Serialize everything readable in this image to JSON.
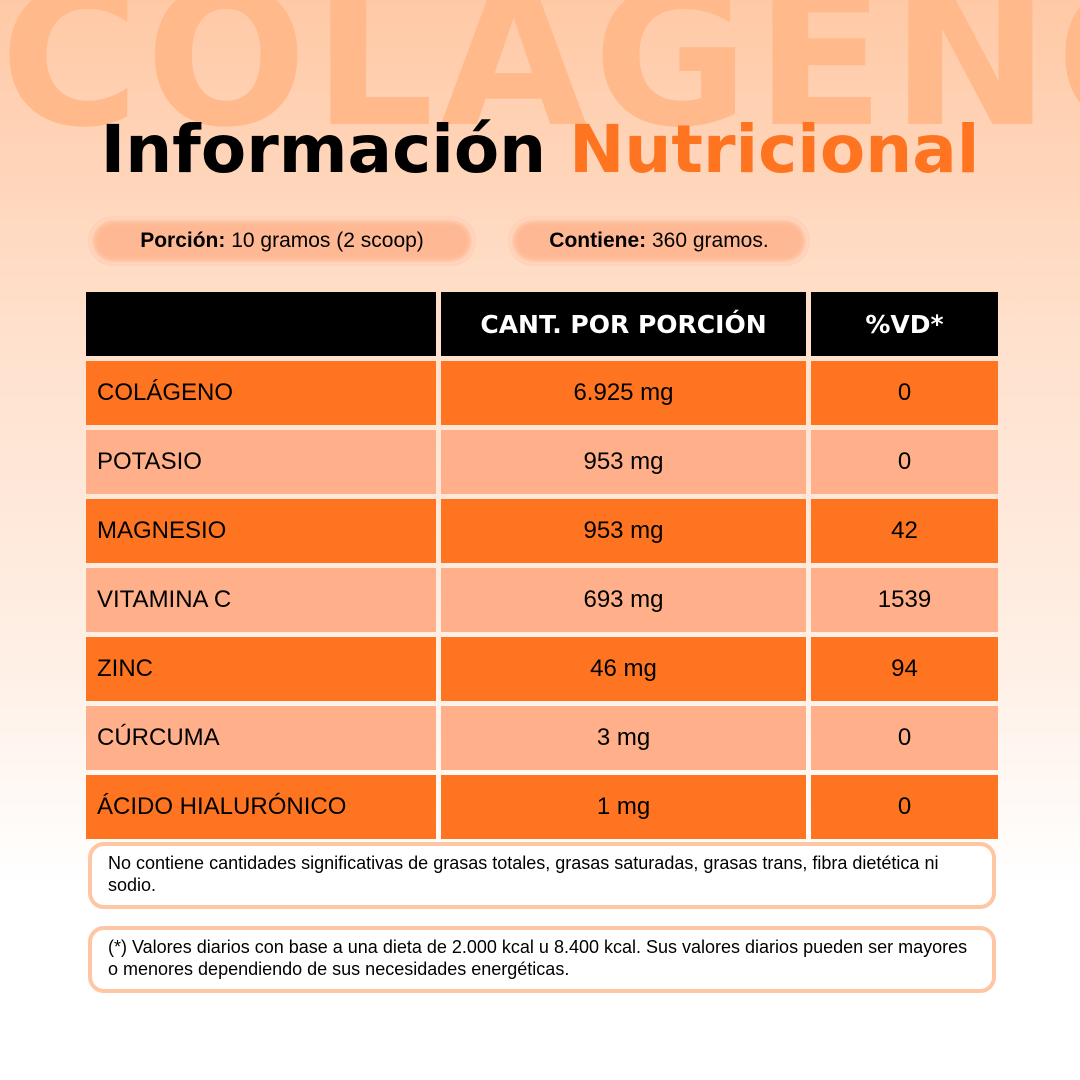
{
  "watermark": "COLÁGENO",
  "title": {
    "part1": "Información",
    "part2": "Nutricional"
  },
  "colors": {
    "accent": "#ff7421",
    "row_light": "#ffb08a",
    "header_bg": "#000000"
  },
  "portion": {
    "label": "Porción:",
    "value": "10 gramos (2 scoop)"
  },
  "contains": {
    "label": "Contiene:",
    "value": "360 gramos."
  },
  "table": {
    "headers": [
      "",
      "CANT. POR PORCIÓN",
      "%VD*"
    ],
    "rows": [
      {
        "name": "COLÁGENO",
        "amount": "6.925 mg",
        "vd": "0"
      },
      {
        "name": "POTASIO",
        "amount": "953 mg",
        "vd": "0"
      },
      {
        "name": "MAGNESIO",
        "amount": "953 mg",
        "vd": "42"
      },
      {
        "name": "VITAMINA C",
        "amount": "693 mg",
        "vd": "1539"
      },
      {
        "name": "ZINC",
        "amount": "46 mg",
        "vd": "94"
      },
      {
        "name": "CÚRCUMA",
        "amount": "3 mg",
        "vd": "0"
      },
      {
        "name": "ÁCIDO HIALURÓNICO",
        "amount": "1 mg",
        "vd": "0"
      }
    ]
  },
  "notes": [
    "No contiene cantidades significativas de grasas totales, grasas saturadas, grasas trans, fibra dietética ni sodio.",
    "(*) Valores diarios con base a una dieta de 2.000 kcal u 8.400 kcal. Sus valores diarios pueden ser mayores o menores dependiendo de sus necesidades energéticas."
  ]
}
